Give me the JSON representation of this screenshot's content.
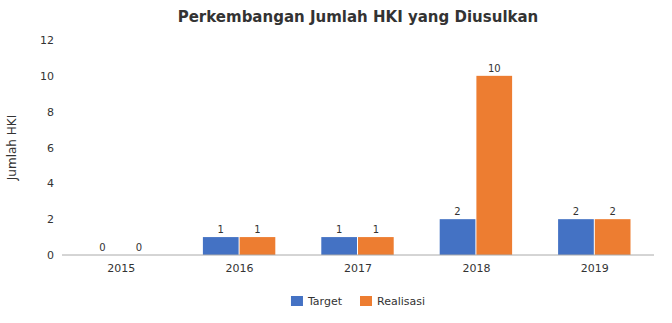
{
  "chart_data": {
    "type": "bar",
    "title": "Perkembangan Jumlah HKI yang Diusulkan",
    "ylabel": "Jumlah HKI",
    "categories": [
      "2015",
      "2016",
      "2017",
      "2018",
      "2019"
    ],
    "series": [
      {
        "name": "Target",
        "color": "#4472C4",
        "values": [
          0,
          1,
          1,
          2,
          2
        ]
      },
      {
        "name": "Realisasi",
        "color": "#ED7D31",
        "values": [
          0,
          1,
          1,
          10,
          2
        ]
      }
    ],
    "ylim": [
      0,
      12
    ],
    "yticks": [
      0,
      2,
      4,
      6,
      8,
      10,
      12
    ],
    "grid": false,
    "legend": "bottom",
    "data_labels": true
  }
}
